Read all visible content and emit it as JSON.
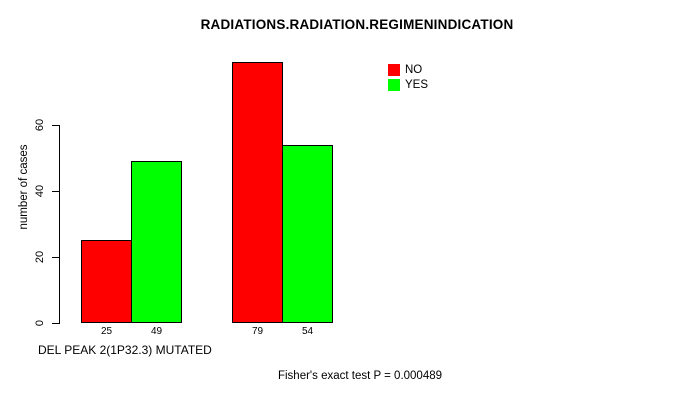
{
  "chart_data": {
    "type": "bar",
    "title": "RADIATIONS.RADIATION.REGIMENINDICATION",
    "ylabel": "number of cases",
    "xlabel": "DEL PEAK 2(1P32.3) MUTATED",
    "footnote": "Fisher's exact test P = 0.000489",
    "yticks": [
      0,
      20,
      40,
      60
    ],
    "ylim": [
      0,
      60
    ],
    "grid": false,
    "legend_position": "top-right",
    "categories": [
      "",
      ""
    ],
    "series": [
      {
        "name": "NO",
        "color": "#ff0000",
        "values": [
          25,
          79
        ]
      },
      {
        "name": "YES",
        "color": "#00ff00",
        "values": [
          49,
          54
        ]
      }
    ],
    "bar_value_labels": [
      25,
      49,
      79,
      54
    ],
    "colors": {
      "axis": "#000000",
      "text": "#000000",
      "background": "#ffffff"
    }
  }
}
